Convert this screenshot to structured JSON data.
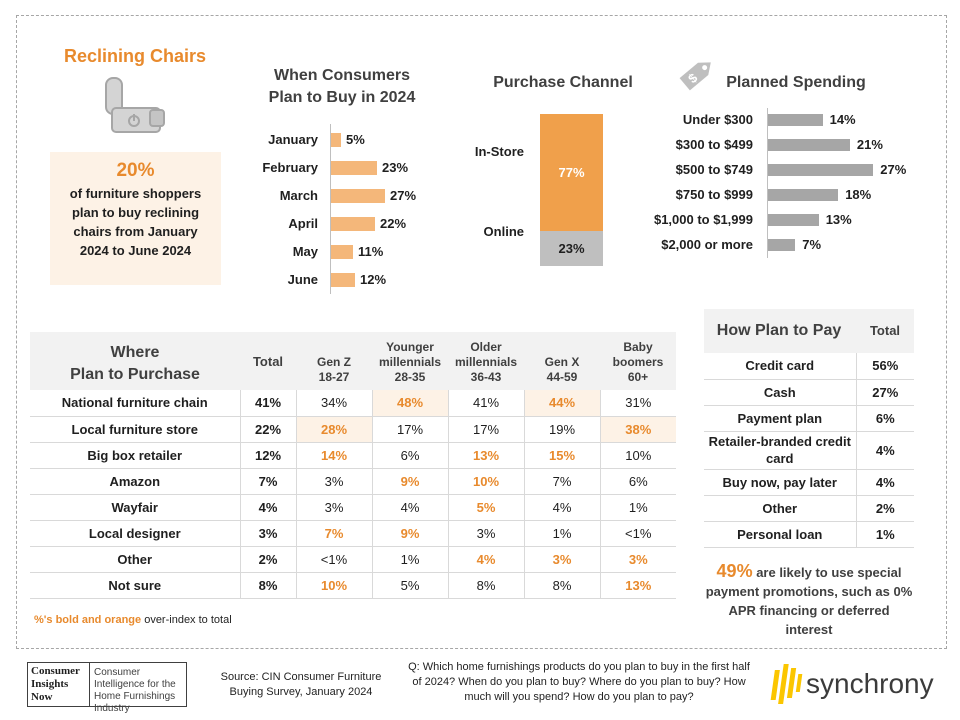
{
  "category": {
    "title": "Reclining Chairs",
    "stat_pct": "20%",
    "stat_text": "of furniture shoppers plan to buy reclining chairs from January 2024 to June 2024"
  },
  "when": {
    "title_line1": "When Consumers",
    "title_line2": "Plan to Buy in 2024"
  },
  "channel": {
    "title": "Purchase Channel"
  },
  "spending": {
    "title": "Planned Spending"
  },
  "chart_data": [
    {
      "type": "bar",
      "orientation": "horizontal",
      "title": "When Consumers Plan to Buy in 2024",
      "categories": [
        "January",
        "February",
        "March",
        "April",
        "May",
        "June"
      ],
      "values": [
        5,
        23,
        27,
        22,
        11,
        12
      ],
      "value_labels": [
        "5%",
        "23%",
        "27%",
        "22%",
        "11%",
        "12%"
      ],
      "color": "#f4b77a"
    },
    {
      "type": "bar",
      "orientation": "stacked-vertical",
      "title": "Purchase Channel",
      "categories": [
        "In-Store",
        "Online"
      ],
      "values": [
        77,
        23
      ],
      "value_labels": [
        "77%",
        "23%"
      ],
      "colors": [
        "#f0a04b",
        "#bfbfbf"
      ]
    },
    {
      "type": "bar",
      "orientation": "horizontal",
      "title": "Planned Spending",
      "categories": [
        "Under $300",
        "$300 to $499",
        "$500 to $749",
        "$750 to $999",
        "$1,000 to $1,999",
        "$2,000 or more"
      ],
      "values": [
        14,
        21,
        27,
        18,
        13,
        7
      ],
      "value_labels": [
        "14%",
        "21%",
        "27%",
        "18%",
        "13%",
        "7%"
      ],
      "color": "#a6a6a6"
    }
  ],
  "where": {
    "title_line1": "Where",
    "title_line2": "Plan to Purchase",
    "columns": [
      {
        "l1": "",
        "l2": "Total"
      },
      {
        "l1": "Gen Z",
        "l2": "18-27"
      },
      {
        "l1": "Younger millennials",
        "l2": "28-35"
      },
      {
        "l1": "Older millennials",
        "l2": "36-43"
      },
      {
        "l1": "Gen X",
        "l2": "44-59"
      },
      {
        "l1": "Baby boomers",
        "l2": "60+"
      }
    ],
    "rows": [
      {
        "label": "National furniture chain",
        "cells": [
          "41%",
          "34%",
          "48%",
          "41%",
          "44%",
          "31%"
        ],
        "hl": [
          2,
          4
        ]
      },
      {
        "label": "Local furniture store",
        "cells": [
          "22%",
          "28%",
          "17%",
          "17%",
          "19%",
          "38%"
        ],
        "hl": [
          1,
          5
        ]
      },
      {
        "label": "Big box retailer",
        "cells": [
          "12%",
          "14%",
          "6%",
          "13%",
          "15%",
          "10%"
        ],
        "hl": [
          1,
          3,
          4
        ]
      },
      {
        "label": "Amazon",
        "cells": [
          "7%",
          "3%",
          "9%",
          "10%",
          "7%",
          "6%"
        ],
        "hl": [
          2,
          3
        ]
      },
      {
        "label": "Wayfair",
        "cells": [
          "4%",
          "3%",
          "4%",
          "5%",
          "4%",
          "1%"
        ],
        "hl": [
          3
        ]
      },
      {
        "label": "Local designer",
        "cells": [
          "3%",
          "7%",
          "9%",
          "3%",
          "1%",
          "<1%"
        ],
        "hl": [
          1,
          2
        ]
      },
      {
        "label": "Other",
        "cells": [
          "2%",
          "<1%",
          "1%",
          "4%",
          "3%",
          "3%"
        ],
        "hl": [
          3,
          4,
          5
        ]
      },
      {
        "label": "Not sure",
        "cells": [
          "8%",
          "10%",
          "5%",
          "8%",
          "8%",
          "13%"
        ],
        "hl": [
          1,
          5
        ]
      }
    ],
    "note_orange": "%'s bold and orange",
    "note_rest": " over-index to total"
  },
  "pay": {
    "title": "How Plan to Pay",
    "total_header": "Total",
    "rows": [
      {
        "label": "Credit card",
        "value": "56%"
      },
      {
        "label": "Cash",
        "value": "27%"
      },
      {
        "label": "Payment plan",
        "value": "6%"
      },
      {
        "label": "Retailer-branded credit card",
        "value": "4%"
      },
      {
        "label": "Buy now, pay later",
        "value": "4%"
      },
      {
        "label": "Other",
        "value": "2%"
      },
      {
        "label": "Personal loan",
        "value": "1%"
      }
    ],
    "promo_pct": "49%",
    "promo_text": " are likely to use special payment promotions, such as 0% APR financing or deferred interest"
  },
  "footer": {
    "logo_line1": "Consumer",
    "logo_line2": "Insights",
    "logo_line3": "Now",
    "logo_tag": "Consumer Intelligence for the Home Furnishings Industry",
    "source": "Source: CIN Consumer Furniture Buying Survey, January 2024",
    "question": "Q: Which home furnishings products do you plan to buy in the first half of 2024? When do you plan to buy? Where do you plan to buy? How much will you spend? How do you plan to pay?",
    "brand": "synchrony"
  },
  "icons": {
    "chair": "recliner-chair-icon",
    "tag": "price-tag-icon",
    "brand": "synchrony-logo-icon"
  }
}
